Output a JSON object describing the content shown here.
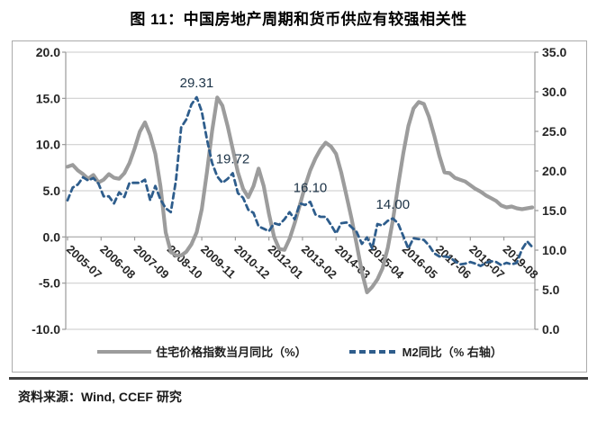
{
  "title": "图 11：中国房地产周期和货币供应有较强相关性",
  "source_note": "资料来源：Wind, CCEF 研究",
  "colors": {
    "housing_line": "#9c9c9c",
    "m2_line": "#2e5d8c",
    "gridline": "#c9c9c9",
    "axis": "#9a9a9a",
    "tick_text": "#262626",
    "annotation_text": "#1c3347",
    "divider": "#3f3f3f"
  },
  "legend": [
    {
      "label": "住宅价格指数当月同比（%）",
      "series": "housing",
      "style": "solid"
    },
    {
      "label": "M2同比（% 右轴）",
      "series": "m2",
      "style": "dashed"
    }
  ],
  "chart_data": {
    "type": "line",
    "title": "图 11：中国房地产周期和货币供应有较强相关性",
    "x_start": "2005-07",
    "x_step_months": 2,
    "x_total_months": 181,
    "x_tick_labels": [
      "2005-07",
      "2006-08",
      "2007-09",
      "2008-10",
      "2009-11",
      "2010-12",
      "2012-01",
      "2013-02",
      "2014-03",
      "2015-04",
      "2016-05",
      "2017-06",
      "2018-07",
      "2019-08"
    ],
    "x_tick_month_offsets": [
      0,
      13,
      26,
      39,
      52,
      65,
      78,
      91,
      104,
      117,
      130,
      143,
      156,
      169
    ],
    "left_axis": {
      "min": -10,
      "max": 20,
      "step": 5,
      "tick_labels": [
        "20.0",
        "15.0",
        "10.0",
        "5.0",
        "0.0",
        "-5.0",
        "-10.0"
      ]
    },
    "right_axis": {
      "min": 0,
      "max": 35,
      "step": 5,
      "tick_labels": [
        "35.0",
        "30.0",
        "25.0",
        "20.0",
        "15.0",
        "10.0",
        "5.0",
        "0.0"
      ]
    },
    "grid": true,
    "legend_position": "bottom",
    "series": [
      {
        "name": "住宅价格指数当月同比（%）",
        "axis": "left",
        "style": "solid",
        "color": "#9c9c9c",
        "values": [
          7.6,
          7.8,
          7.2,
          6.8,
          6.3,
          6.7,
          5.9,
          6.2,
          6.8,
          6.4,
          6.3,
          6.9,
          8.0,
          9.6,
          11.4,
          12.4,
          11.0,
          9.0,
          5.5,
          0.5,
          -1.6,
          -2.0,
          -2.0,
          -1.6,
          -0.8,
          0.5,
          3.0,
          7.0,
          11.5,
          15.1,
          14.2,
          12.0,
          9.5,
          7.0,
          5.2,
          4.3,
          5.5,
          7.4,
          5.5,
          2.5,
          0.0,
          -1.3,
          -1.4,
          -0.2,
          1.5,
          3.5,
          5.5,
          7.2,
          8.5,
          9.5,
          10.2,
          9.8,
          9.0,
          7.0,
          4.5,
          2.0,
          -0.8,
          -3.8,
          -6.0,
          -5.4,
          -4.6,
          -3.4,
          -1.2,
          1.8,
          5.5,
          9.0,
          12.0,
          13.9,
          14.6,
          14.4,
          13.0,
          11.0,
          8.8,
          7.0,
          6.9,
          6.4,
          6.2,
          6.0,
          5.6,
          5.2,
          4.9,
          4.5,
          4.2,
          3.9,
          3.4,
          3.2,
          3.3,
          3.1,
          3.0,
          3.1,
          3.2
        ]
      },
      {
        "name": "M2同比（% 右轴）",
        "axis": "right",
        "style": "dashed",
        "color": "#2e5d8c",
        "values": [
          16.3,
          17.9,
          18.3,
          19.2,
          18.8,
          19.1,
          18.4,
          16.8,
          16.8,
          15.9,
          17.3,
          16.7,
          18.5,
          18.5,
          18.5,
          18.9,
          16.3,
          18.1,
          16.4,
          15.3,
          14.8,
          18.8,
          25.5,
          26.5,
          28.4,
          29.31,
          27.5,
          24.0,
          21.0,
          19.3,
          18.5,
          19.0,
          19.72,
          17.2,
          16.6,
          15.1,
          14.7,
          13.0,
          12.7,
          12.4,
          13.4,
          13.2,
          13.9,
          14.8,
          13.9,
          15.9,
          15.7,
          16.1,
          14.5,
          14.2,
          14.2,
          13.2,
          12.1,
          13.4,
          13.5,
          12.9,
          12.3,
          10.8,
          11.6,
          10.2,
          13.3,
          13.1,
          13.7,
          14.0,
          13.4,
          11.8,
          10.2,
          11.5,
          11.4,
          11.3,
          10.6,
          9.6,
          9.2,
          9.2,
          9.1,
          8.6,
          8.2,
          8.3,
          8.5,
          8.3,
          8.0,
          8.4,
          8.6,
          8.5,
          8.1,
          8.4,
          8.2,
          8.4,
          10.1,
          11.1,
          10.4
        ]
      }
    ],
    "annotations": [
      {
        "text": "29.31",
        "month": 50,
        "value": 29.31,
        "axis": "right"
      },
      {
        "text": "19.72",
        "month": 64,
        "value": 19.72,
        "axis": "right"
      },
      {
        "text": "16.10",
        "month": 94,
        "value": 16.1,
        "axis": "right"
      },
      {
        "text": "14.00",
        "month": 126,
        "value": 14.0,
        "axis": "right"
      }
    ]
  }
}
